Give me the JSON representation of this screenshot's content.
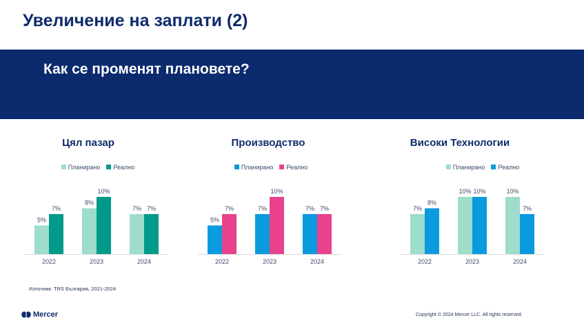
{
  "header": {
    "title": "Увеличение на заплати (2)",
    "subtitle": "Как се променят плановете?"
  },
  "legend_labels": {
    "planned": "Планирано",
    "actual": "Реално"
  },
  "chart_data": [
    {
      "type": "bar",
      "title": "Цял пазар",
      "categories": [
        "2022",
        "2023",
        "2024"
      ],
      "series": [
        {
          "name": "Планирано",
          "values": [
            5,
            8,
            7
          ],
          "color": "#9edccb"
        },
        {
          "name": "Реално",
          "values": [
            7,
            10,
            7
          ],
          "color": "#00998a"
        }
      ],
      "value_labels": [
        [
          "5%",
          "8%",
          "7%"
        ],
        [
          "7%",
          "10%",
          "7%"
        ]
      ],
      "ylim": [
        0,
        10
      ],
      "unit": "%"
    },
    {
      "type": "bar",
      "title": "Производство",
      "categories": [
        "2022",
        "2023",
        "2024"
      ],
      "series": [
        {
          "name": "Планирано",
          "values": [
            5,
            7,
            7
          ],
          "color": "#0a9ade"
        },
        {
          "name": "Реално",
          "values": [
            7,
            10,
            7
          ],
          "color": "#e8428e"
        }
      ],
      "value_labels": [
        [
          "5%",
          "7%",
          "7%"
        ],
        [
          "7%",
          "10%",
          "7%"
        ]
      ],
      "ylim": [
        0,
        10
      ],
      "unit": "%"
    },
    {
      "type": "bar",
      "title": "Високи Технологии",
      "categories": [
        "2022",
        "2023",
        "2024"
      ],
      "series": [
        {
          "name": "Планирано",
          "values": [
            7,
            10,
            10
          ],
          "color": "#9edccb"
        },
        {
          "name": "Реално",
          "values": [
            8,
            10,
            7
          ],
          "color": "#0a9ade"
        }
      ],
      "value_labels": [
        [
          "7%",
          "10%",
          "10%"
        ],
        [
          "8%",
          "10%",
          "7%"
        ]
      ],
      "ylim": [
        0,
        10
      ],
      "unit": "%"
    }
  ],
  "footer": {
    "source": "Източник: TRS България, 2021-2024",
    "logo": "Mercer",
    "copyright": "Copyright © 2024 Mercer LLC. All rights reserved."
  }
}
